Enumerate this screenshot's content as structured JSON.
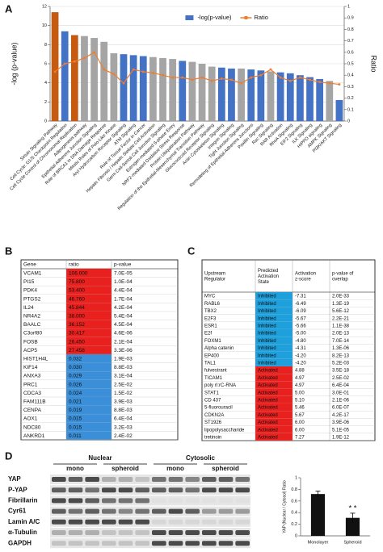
{
  "panels": [
    "A",
    "B",
    "C",
    "D"
  ],
  "chart_data": [
    {
      "type": "bar",
      "ylabel": "-log (p-value)",
      "y2label": "Ratio",
      "categories": [
        "Sirtuin Signaling Pathway",
        "Cell Cycle: G1/S Checkpoint Regulation",
        "Cell Cycle Control of Chromosomal Replication",
        "Adipogenesis pathway",
        "Epithelial Adherens Junction Signaling",
        "Role of BRCA1 in DNA Damage Response",
        "Mitotic Roles of Polo-Like Kinase",
        "Aryl Hydrocarbon Receptor Signaling",
        "ATM Signaling",
        "Role of Tissue Factor in Cancer",
        "Hepatic Fibrosis / Hepatic Stellate Cell Activation",
        "Germ Cell-Sertoli Cell Junction Signaling",
        "Estrogen-mediated S-phase Entry",
        "NRF2-mediated Oxidative Stress Response",
        "Protein Ubiquitination Pathway",
        "Regulation of the Epithelial-Mesenchymal Transition Pathway",
        "Glucocorticoid Receptor Signaling",
        "Actin Cytoskeleton Signaling",
        "Integrin Signaling",
        "Tight Junction Signaling",
        "Remodeling of Epithelial Adherens Junctions",
        "Paxillin Signaling",
        "Rac Signaling",
        "RAR Activation",
        "RhoA Signaling",
        "EIF2 Signaling",
        "ILK Signaling",
        "HIPPO signaling",
        "AMPK Signaling",
        "PI3K/AKT Signaling"
      ],
      "series": [
        {
          "name": "-log(p-value)",
          "type": "bar",
          "color": "#4472c4",
          "colors": [
            "#c55a11",
            "#4472c4",
            "#c55a11",
            "#a5a5a5",
            "#a5a5a5",
            "#a5a5a5",
            "#a5a5a5",
            "#4472c4",
            "#4472c4",
            "#4472c4",
            "#a5a5a5",
            "#a5a5a5",
            "#a5a5a5",
            "#4472c4",
            "#a5a5a5",
            "#a5a5a5",
            "#a5a5a5",
            "#4472c4",
            "#4472c4",
            "#a5a5a5",
            "#4472c4",
            "#4472c4",
            "#a5a5a5",
            "#4472c4",
            "#4472c4",
            "#4472c4",
            "#4472c4",
            "#4472c4",
            "#a5a5a5",
            "#4472c4"
          ],
          "values": [
            11.4,
            9.4,
            9.0,
            8.9,
            8.7,
            8.3,
            7.1,
            7.0,
            6.9,
            6.8,
            6.7,
            6.6,
            6.5,
            6.3,
            6.2,
            6.0,
            5.7,
            5.6,
            5.5,
            5.5,
            5.4,
            5.3,
            5.2,
            5.1,
            5.0,
            4.8,
            4.6,
            4.4,
            4.2,
            2.2
          ]
        },
        {
          "name": "Ratio",
          "type": "line",
          "axis": "y2",
          "color": "#ed7d31",
          "values": [
            0.43,
            0.5,
            0.52,
            0.55,
            0.6,
            0.45,
            0.41,
            0.33,
            0.45,
            0.43,
            0.42,
            0.4,
            0.38,
            0.38,
            0.36,
            0.38,
            0.35,
            0.37,
            0.36,
            0.33,
            0.38,
            0.4,
            0.45,
            0.38,
            0.35,
            0.38,
            0.36,
            0.34,
            0.33,
            0.32
          ]
        }
      ],
      "ylim": [
        0,
        12
      ],
      "yticks": [
        0,
        2,
        4,
        6,
        8,
        10,
        12
      ],
      "y2lim": [
        0,
        1
      ],
      "y2ticks": [
        0,
        0.1,
        0.2,
        0.3,
        0.4,
        0.5,
        0.6,
        0.7,
        0.8,
        0.9,
        1
      ],
      "grid": true,
      "legend": "top"
    },
    {
      "type": "bar",
      "ylabel": "YAP (Nuclear / Cytosol) Ratio",
      "categories": [
        "Monolayer",
        "Spheroid"
      ],
      "series": [
        {
          "name": "YAP ratio",
          "type": "bar",
          "color": "#111111",
          "values": [
            0.72,
            0.31
          ],
          "errors": [
            0.05,
            0.08
          ]
        }
      ],
      "ylim": [
        0,
        1
      ],
      "yticks": [
        0,
        0.2,
        0.4,
        0.6,
        0.8,
        1
      ],
      "grid": false,
      "annotations": [
        {
          "text": "* *",
          "category": 1
        }
      ]
    }
  ],
  "table_b": {
    "header": [
      "Gene",
      "ratio",
      "p-value"
    ],
    "rows": [
      [
        "VCAM1",
        "106.000",
        "7.0E-05"
      ],
      [
        "PI15",
        "75.800",
        "1.0E-04"
      ],
      [
        "PDK4",
        "53.400",
        "4.4E-04"
      ],
      [
        "PTGS2",
        "46.760",
        "1.7E-04"
      ],
      [
        "IL24",
        "45.844",
        "4.2E-04"
      ],
      [
        "NR4A2",
        "38.000",
        "5.4E-04"
      ],
      [
        "BAALC",
        "36.152",
        "4.5E-04"
      ],
      [
        "C3orf80",
        "30.417",
        "4.6E-06"
      ],
      [
        "FOSB",
        "26.450",
        "2.1E-04"
      ],
      [
        "ACP5",
        "27.458",
        "3.3E-06"
      ],
      [
        "HIST1H4L",
        "0.032",
        "1.9E-03"
      ],
      [
        "KIF14",
        "0.030",
        "8.8E-03"
      ],
      [
        "ANXA3",
        "0.029",
        "3.1E-04"
      ],
      [
        "PRC1",
        "0.026",
        "2.5E-02"
      ],
      [
        "CDCA3",
        "0.024",
        "1.5E-02"
      ],
      [
        "FAM111B",
        "0.021",
        "3.9E-03"
      ],
      [
        "CENPA",
        "0.019",
        "8.8E-03"
      ],
      [
        "AOX1",
        "0.015",
        "6.4E-04"
      ],
      [
        "NDC80",
        "0.015",
        "3.2E-03"
      ],
      [
        "ANKRD1",
        "0.011",
        "2.4E-02"
      ]
    ],
    "cell_colors": [
      "#e8201e",
      "#e8201e",
      "#e8201e",
      "#e8201e",
      "#e8201e",
      "#e8201e",
      "#e8201e",
      "#e8201e",
      "#e8201e",
      "#e8201e",
      "#3a8fd8",
      "#3a8fd8",
      "#3a8fd8",
      "#3a8fd8",
      "#3a8fd8",
      "#3a8fd8",
      "#3a8fd8",
      "#3a8fd8",
      "#3a8fd8",
      "#3a8fd8"
    ]
  },
  "table_c": {
    "header": [
      "Upstream Regulator",
      "Predicted Activation State",
      "Activation z-score",
      "p-value of overlap"
    ],
    "rows": [
      [
        "MYC",
        "Inhibited",
        "-7.31",
        "2.0E-33"
      ],
      [
        "RABL6",
        "Inhibited",
        "-6.49",
        "1.3E-19"
      ],
      [
        "TBX2",
        "Inhibited",
        "-6.09",
        "5.6E-12"
      ],
      [
        "E2F3",
        "Inhibited",
        "-5.67",
        "2.2E-21"
      ],
      [
        "ESR1",
        "Inhibited",
        "-5.66",
        "1.1E-38"
      ],
      [
        "E2f",
        "Inhibited",
        "-5.00",
        "2.0E-13"
      ],
      [
        "FOXM1",
        "Inhibited",
        "-4.80",
        "7.0E-14"
      ],
      [
        "Alpha catenin",
        "Inhibited",
        "-4.31",
        "1.3E-06"
      ],
      [
        "EP400",
        "Inhibited",
        "-4.20",
        "8.2E-13"
      ],
      [
        "TAL1",
        "Inhibited",
        "-4.20",
        "5.2E-03"
      ],
      [
        "fulvestrant",
        "Activated",
        "4.88",
        "3.5E-18"
      ],
      [
        "TICAM1",
        "Activated",
        "4.97",
        "2.5E-02"
      ],
      [
        "poly rI:rC-RNA",
        "Activated",
        "4.97",
        "6.4E-04"
      ],
      [
        "STAT1",
        "Activated",
        "5.00",
        "3.0E-01"
      ],
      [
        "CD 437",
        "Activated",
        "5.10",
        "2.1E-06"
      ],
      [
        "5-fluorouracil",
        "Activated",
        "5.46",
        "6.0E-07"
      ],
      [
        "CDKN2A",
        "Activated",
        "5.67",
        "4.2E-17"
      ],
      [
        "ST1926",
        "Activated",
        "6.00",
        "3.9E-06"
      ],
      [
        "lipopolysaccharide",
        "Activated",
        "6.00",
        "5.1E-05"
      ],
      [
        "tretinoin",
        "Activated",
        "7.27",
        "1.9E-12"
      ]
    ],
    "state_colors": {
      "Inhibited": "#1ea0dc",
      "Activated": "#e8201e"
    }
  },
  "blot": {
    "groups": [
      "Nuclear",
      "Cytosolic"
    ],
    "lanes": [
      "mono",
      "spheroid",
      "mono",
      "spheroid"
    ],
    "rows": [
      "YAP",
      "P-YAP",
      "Fibrillarin",
      "Cyr61",
      "Lamin A/C",
      "α-Tubulin",
      "GAPDH"
    ]
  }
}
